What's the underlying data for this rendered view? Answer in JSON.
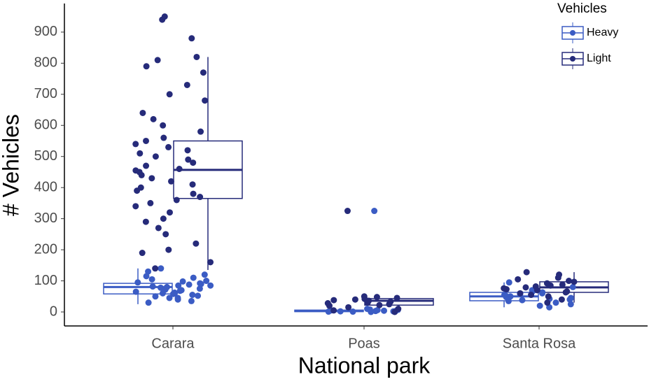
{
  "chart_data": {
    "type": "boxplot",
    "x_label": "National park",
    "y_label": "# Vehicles",
    "categories": [
      "Carara",
      "Poas",
      "Santa Rosa"
    ],
    "legend_title": "Vehicles",
    "legend_position": "top-right",
    "ylim": [
      -45,
      992
    ],
    "yticks": [
      0,
      100,
      200,
      300,
      400,
      500,
      600,
      700,
      800,
      900
    ],
    "series": [
      {
        "name": "Heavy",
        "color": "#3b5cc4",
        "boxes": [
          {
            "min": 25,
            "q1": 58,
            "median": 80,
            "q3": 92,
            "max": 140
          },
          {
            "min": 0,
            "q1": 1,
            "median": 3,
            "q3": 6,
            "max": 10
          },
          {
            "min": 15,
            "q1": 36,
            "median": 50,
            "q3": 63,
            "max": 95
          }
        ],
        "points": [
          [
            30,
            35,
            40,
            45,
            50,
            52,
            55,
            58,
            60,
            62,
            65,
            68,
            70,
            72,
            75,
            78,
            80,
            82,
            85,
            88,
            90,
            92,
            95,
            98,
            100,
            105,
            110,
            115,
            120,
            130,
            140,
            45,
            60,
            75,
            85
          ],
          [
            0,
            1,
            1,
            2,
            2,
            3,
            3,
            4,
            5,
            6,
            7,
            8,
            10,
            325
          ],
          [
            15,
            20,
            25,
            30,
            35,
            38,
            40,
            42,
            45,
            48,
            50,
            52,
            55,
            58,
            60,
            63,
            66,
            70,
            80,
            95
          ]
        ]
      },
      {
        "name": "Light",
        "color": "#262b7a",
        "boxes": [
          {
            "min": 135,
            "q1": 365,
            "median": 457,
            "q3": 550,
            "max": 820
          },
          {
            "min": 0,
            "q1": 22,
            "median": 36,
            "q3": 43,
            "max": 50
          },
          {
            "min": 30,
            "q1": 63,
            "median": 79,
            "q3": 97,
            "max": 128
          }
        ],
        "points": [
          [
            140,
            160,
            190,
            200,
            220,
            250,
            270,
            290,
            300,
            320,
            340,
            350,
            360,
            370,
            380,
            390,
            400,
            410,
            420,
            430,
            440,
            450,
            455,
            460,
            470,
            480,
            490,
            500,
            510,
            520,
            530,
            540,
            550,
            560,
            580,
            600,
            620,
            640,
            680,
            700,
            730,
            770,
            790,
            810,
            820,
            880,
            940,
            950
          ],
          [
            0,
            5,
            10,
            15,
            20,
            22,
            25,
            28,
            30,
            33,
            36,
            38,
            40,
            42,
            45,
            48,
            50,
            325
          ],
          [
            30,
            40,
            50,
            55,
            60,
            63,
            66,
            70,
            73,
            76,
            79,
            82,
            85,
            88,
            92,
            97,
            100,
            105,
            110,
            120,
            128
          ]
        ]
      }
    ]
  }
}
